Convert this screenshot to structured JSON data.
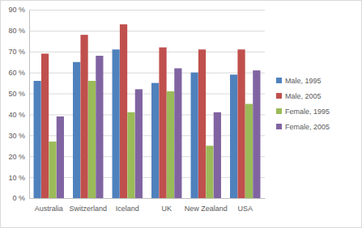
{
  "chart_data": {
    "type": "bar",
    "categories": [
      "Australia",
      "Switzerland",
      "Iceland",
      "UK",
      "New Zealand",
      "USA"
    ],
    "series": [
      {
        "name": "Male, 1995",
        "color": "#4f81bd",
        "values": [
          56,
          65,
          71,
          55,
          60,
          59
        ]
      },
      {
        "name": "Male, 2005",
        "color": "#c0504d",
        "values": [
          69,
          78,
          83,
          72,
          71,
          71
        ]
      },
      {
        "name": "Female, 1995",
        "color": "#9bbb59",
        "values": [
          27,
          56,
          41,
          51,
          25,
          45
        ]
      },
      {
        "name": "Female, 2005",
        "color": "#8064a2",
        "values": [
          39,
          68,
          52,
          62,
          41,
          61
        ]
      }
    ],
    "ylim": [
      0,
      90
    ],
    "yticks": [
      {
        "value": 0,
        "label": "0 %"
      },
      {
        "value": 10,
        "label": "10 %"
      },
      {
        "value": 20,
        "label": "20 %"
      },
      {
        "value": 30,
        "label": "30 %"
      },
      {
        "value": 40,
        "label": "40 %"
      },
      {
        "value": 50,
        "label": "50 %"
      },
      {
        "value": 60,
        "label": "60 %"
      },
      {
        "value": 70,
        "label": "70 %"
      },
      {
        "value": 80,
        "label": "80 %"
      },
      {
        "value": 90,
        "label": "90 %"
      }
    ],
    "grid": true,
    "legend": "right"
  }
}
